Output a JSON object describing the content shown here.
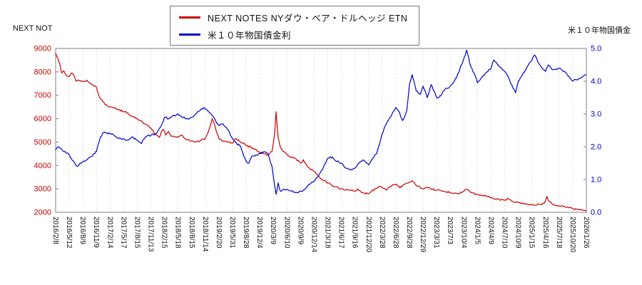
{
  "titles": {
    "left_axis_title": "NEXT NOT",
    "right_axis_title": "米１０年物国債金"
  },
  "legend": {
    "items": [
      {
        "label": "NEXT NOTES NYダウ・ベア・ドルヘッジ ETN",
        "color": "#cc0000"
      },
      {
        "label": "米１０年物国債金利",
        "color": "#0000cc"
      }
    ]
  },
  "chart_data": {
    "type": "line",
    "title": "",
    "grid": {
      "vertical_dotted": true,
      "color": "#c9c9c9"
    },
    "x_tick_labels": [
      "2016/2/8",
      "2016/5/12",
      "2016/8/9",
      "2016/11/9",
      "2017/2/14",
      "2017/5/17",
      "2017/8/15",
      "2017/11/13",
      "2018/2/15",
      "2018/5/18",
      "2018/8/15",
      "2018/11/14",
      "2019/2/20",
      "2019/5/31",
      "2019/8/28",
      "2019/12/4",
      "2020/3/9",
      "2020/6/10",
      "2020/9/9",
      "2020/12/14",
      "2021/3/18",
      "2021/6/17",
      "2021/9/16",
      "2021/12/20",
      "2022/3/28",
      "2022/6/28",
      "2022/9/28",
      "2022/12/29",
      "2023/3/31",
      "2023/7/3",
      "2023/10/4",
      "2024/1/5",
      "2024/4/9",
      "2024/7/10",
      "2024/10/9",
      "2025/1/15",
      "2025/4/16",
      "2025/7/18",
      "2025/10/20",
      "2026/1/26"
    ],
    "left_axis": {
      "title": "NEXT NOT",
      "min": 2000,
      "max": 9000,
      "tick_step": 1000,
      "color": "#cc0000",
      "decimals": 0
    },
    "right_axis": {
      "title": "米１０年物国債金",
      "min": 0.0,
      "max": 5.0,
      "tick_step": 1.0,
      "color": "#0000cc",
      "decimals": 1
    },
    "series": [
      {
        "name": "NEXT NOTES NYダウ・ベア・ドルヘッジ ETN",
        "axis": "left",
        "color": "#cc0000",
        "noise": 45,
        "points": [
          [
            0,
            8800
          ],
          [
            0.15,
            8600
          ],
          [
            0.3,
            8350
          ],
          [
            0.45,
            7950
          ],
          [
            0.6,
            8050
          ],
          [
            0.8,
            7850
          ],
          [
            1,
            7800
          ],
          [
            1.15,
            7950
          ],
          [
            1.3,
            7900
          ],
          [
            1.5,
            7600
          ],
          [
            1.7,
            7650
          ],
          [
            2,
            7600
          ],
          [
            2.3,
            7650
          ],
          [
            2.6,
            7500
          ],
          [
            3,
            7350
          ],
          [
            3.2,
            6950
          ],
          [
            3.5,
            6700
          ],
          [
            3.8,
            6550
          ],
          [
            4,
            6500
          ],
          [
            4.3,
            6450
          ],
          [
            4.6,
            6400
          ],
          [
            5,
            6300
          ],
          [
            5.3,
            6250
          ],
          [
            5.6,
            6100
          ],
          [
            6,
            6000
          ],
          [
            6.3,
            5900
          ],
          [
            6.6,
            5750
          ],
          [
            7,
            5600
          ],
          [
            7.3,
            5350
          ],
          [
            7.6,
            5200
          ],
          [
            7.9,
            5550
          ],
          [
            8.1,
            5300
          ],
          [
            8.3,
            5450
          ],
          [
            8.5,
            5250
          ],
          [
            9,
            5200
          ],
          [
            9.3,
            5300
          ],
          [
            9.6,
            5100
          ],
          [
            10,
            5050
          ],
          [
            10.3,
            5000
          ],
          [
            10.6,
            5050
          ],
          [
            11,
            5150
          ],
          [
            11.2,
            5400
          ],
          [
            11.5,
            6000
          ],
          [
            11.7,
            5700
          ],
          [
            12,
            5150
          ],
          [
            12.3,
            5050
          ],
          [
            12.6,
            5000
          ],
          [
            13,
            4950
          ],
          [
            13.2,
            5150
          ],
          [
            13.5,
            5050
          ],
          [
            14,
            4850
          ],
          [
            14.3,
            4800
          ],
          [
            14.6,
            4700
          ],
          [
            15,
            4550
          ],
          [
            15.3,
            4500
          ],
          [
            15.6,
            4450
          ],
          [
            15.9,
            4600
          ],
          [
            16.1,
            5400
          ],
          [
            16.2,
            6300
          ],
          [
            16.35,
            5200
          ],
          [
            16.5,
            4800
          ],
          [
            16.7,
            4600
          ],
          [
            17,
            4450
          ],
          [
            17.3,
            4350
          ],
          [
            17.6,
            4300
          ],
          [
            18,
            4100
          ],
          [
            18.2,
            4250
          ],
          [
            18.5,
            3950
          ],
          [
            19,
            3750
          ],
          [
            19.3,
            3550
          ],
          [
            19.6,
            3400
          ],
          [
            20,
            3250
          ],
          [
            20.3,
            3150
          ],
          [
            20.6,
            3100
          ],
          [
            21,
            3000
          ],
          [
            21.3,
            2950
          ],
          [
            21.6,
            2950
          ],
          [
            22,
            2900
          ],
          [
            22.2,
            3000
          ],
          [
            22.5,
            2850
          ],
          [
            23,
            2800
          ],
          [
            23.2,
            2900
          ],
          [
            23.5,
            3000
          ],
          [
            23.8,
            3100
          ],
          [
            24,
            3050
          ],
          [
            24.3,
            2950
          ],
          [
            24.6,
            3100
          ],
          [
            25,
            3200
          ],
          [
            25.3,
            3050
          ],
          [
            25.6,
            3200
          ],
          [
            26,
            3300
          ],
          [
            26.2,
            3350
          ],
          [
            26.5,
            3150
          ],
          [
            27,
            3000
          ],
          [
            27.3,
            3050
          ],
          [
            27.6,
            2980
          ],
          [
            28,
            2950
          ],
          [
            28.3,
            2920
          ],
          [
            28.6,
            2880
          ],
          [
            29,
            2850
          ],
          [
            29.3,
            2820
          ],
          [
            29.6,
            2800
          ],
          [
            30,
            2900
          ],
          [
            30.2,
            2980
          ],
          [
            30.5,
            2850
          ],
          [
            31,
            2760
          ],
          [
            31.3,
            2720
          ],
          [
            31.6,
            2700
          ],
          [
            32,
            2620
          ],
          [
            32.3,
            2570
          ],
          [
            32.6,
            2540
          ],
          [
            33,
            2520
          ],
          [
            33.2,
            2600
          ],
          [
            33.5,
            2480
          ],
          [
            34,
            2420
          ],
          [
            34.3,
            2380
          ],
          [
            34.6,
            2350
          ],
          [
            35,
            2320
          ],
          [
            35.3,
            2300
          ],
          [
            35.6,
            2340
          ],
          [
            35.9,
            2380
          ],
          [
            36.1,
            2680
          ],
          [
            36.3,
            2450
          ],
          [
            36.5,
            2350
          ],
          [
            37,
            2280
          ],
          [
            37.3,
            2250
          ],
          [
            37.6,
            2220
          ],
          [
            38,
            2160
          ],
          [
            38.3,
            2130
          ],
          [
            38.6,
            2100
          ],
          [
            39,
            2050
          ]
        ]
      },
      {
        "name": "米１０年物国債金利",
        "axis": "right",
        "color": "#0000cc",
        "noise": 0.035,
        "points": [
          [
            0,
            1.9
          ],
          [
            0.2,
            2.0
          ],
          [
            0.4,
            1.95
          ],
          [
            0.6,
            1.85
          ],
          [
            0.8,
            1.8
          ],
          [
            1,
            1.75
          ],
          [
            1.2,
            1.6
          ],
          [
            1.4,
            1.5
          ],
          [
            1.6,
            1.4
          ],
          [
            1.8,
            1.5
          ],
          [
            2,
            1.55
          ],
          [
            2.3,
            1.6
          ],
          [
            2.6,
            1.7
          ],
          [
            2.9,
            1.8
          ],
          [
            3,
            1.85
          ],
          [
            3.15,
            2.1
          ],
          [
            3.3,
            2.3
          ],
          [
            3.6,
            2.45
          ],
          [
            4,
            2.4
          ],
          [
            4.3,
            2.35
          ],
          [
            4.6,
            2.25
          ],
          [
            5,
            2.25
          ],
          [
            5.3,
            2.2
          ],
          [
            5.6,
            2.3
          ],
          [
            6,
            2.2
          ],
          [
            6.3,
            2.1
          ],
          [
            6.6,
            2.3
          ],
          [
            7,
            2.35
          ],
          [
            7.4,
            2.4
          ],
          [
            7.7,
            2.6
          ],
          [
            8,
            2.9
          ],
          [
            8.3,
            2.85
          ],
          [
            8.6,
            2.95
          ],
          [
            9,
            3.0
          ],
          [
            9.3,
            2.9
          ],
          [
            9.6,
            2.85
          ],
          [
            10,
            2.9
          ],
          [
            10.3,
            3.0
          ],
          [
            10.6,
            3.1
          ],
          [
            10.9,
            3.2
          ],
          [
            11,
            3.15
          ],
          [
            11.3,
            3.05
          ],
          [
            11.6,
            2.9
          ],
          [
            12,
            2.65
          ],
          [
            12.3,
            2.7
          ],
          [
            12.6,
            2.55
          ],
          [
            13,
            2.25
          ],
          [
            13.3,
            2.1
          ],
          [
            13.6,
            2.0
          ],
          [
            14,
            1.55
          ],
          [
            14.2,
            1.5
          ],
          [
            14.4,
            1.7
          ],
          [
            14.7,
            1.75
          ],
          [
            15,
            1.8
          ],
          [
            15.3,
            1.85
          ],
          [
            15.6,
            1.8
          ],
          [
            15.9,
            1.4
          ],
          [
            16.1,
            0.8
          ],
          [
            16.2,
            0.55
          ],
          [
            16.35,
            0.9
          ],
          [
            16.5,
            0.65
          ],
          [
            16.8,
            0.7
          ],
          [
            17,
            0.7
          ],
          [
            17.3,
            0.65
          ],
          [
            17.6,
            0.6
          ],
          [
            18,
            0.65
          ],
          [
            18.3,
            0.7
          ],
          [
            18.6,
            0.85
          ],
          [
            19,
            0.95
          ],
          [
            19.3,
            1.1
          ],
          [
            19.6,
            1.3
          ],
          [
            20,
            1.65
          ],
          [
            20.2,
            1.7
          ],
          [
            20.5,
            1.6
          ],
          [
            21,
            1.5
          ],
          [
            21.3,
            1.35
          ],
          [
            21.6,
            1.3
          ],
          [
            22,
            1.35
          ],
          [
            22.3,
            1.5
          ],
          [
            22.6,
            1.6
          ],
          [
            23,
            1.45
          ],
          [
            23.3,
            1.65
          ],
          [
            23.6,
            1.8
          ],
          [
            24,
            2.4
          ],
          [
            24.3,
            2.7
          ],
          [
            24.6,
            2.9
          ],
          [
            25,
            3.2
          ],
          [
            25.2,
            3.1
          ],
          [
            25.5,
            2.8
          ],
          [
            25.8,
            3.1
          ],
          [
            26,
            3.9
          ],
          [
            26.2,
            4.2
          ],
          [
            26.5,
            3.7
          ],
          [
            26.8,
            3.6
          ],
          [
            27,
            3.85
          ],
          [
            27.3,
            3.5
          ],
          [
            27.6,
            3.9
          ],
          [
            28,
            3.5
          ],
          [
            28.3,
            3.55
          ],
          [
            28.6,
            3.75
          ],
          [
            29,
            3.85
          ],
          [
            29.3,
            4.0
          ],
          [
            29.6,
            4.25
          ],
          [
            30,
            4.7
          ],
          [
            30.2,
            4.95
          ],
          [
            30.5,
            4.45
          ],
          [
            30.8,
            4.2
          ],
          [
            31,
            3.95
          ],
          [
            31.3,
            4.1
          ],
          [
            31.6,
            4.25
          ],
          [
            32,
            4.4
          ],
          [
            32.2,
            4.65
          ],
          [
            32.5,
            4.5
          ],
          [
            33,
            4.3
          ],
          [
            33.3,
            4.1
          ],
          [
            33.6,
            3.8
          ],
          [
            33.8,
            3.65
          ],
          [
            34,
            4.0
          ],
          [
            34.3,
            4.2
          ],
          [
            34.6,
            4.4
          ],
          [
            35,
            4.65
          ],
          [
            35.2,
            4.8
          ],
          [
            35.5,
            4.55
          ],
          [
            36,
            4.3
          ],
          [
            36.2,
            4.5
          ],
          [
            36.5,
            4.35
          ],
          [
            37,
            4.4
          ],
          [
            37.3,
            4.3
          ],
          [
            37.6,
            4.2
          ],
          [
            38,
            4.0
          ],
          [
            38.3,
            4.05
          ],
          [
            38.6,
            4.1
          ],
          [
            39,
            4.2
          ]
        ]
      }
    ]
  }
}
